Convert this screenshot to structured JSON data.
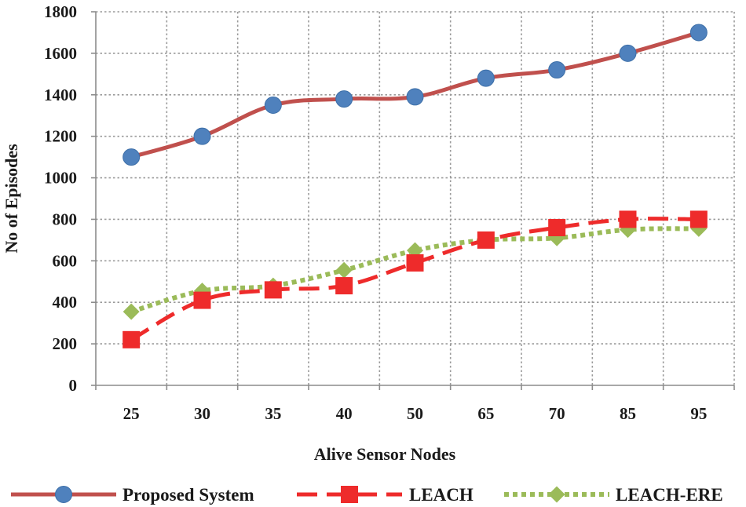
{
  "chart_data": {
    "type": "line",
    "title": "",
    "xlabel": "Alive Sensor Nodes",
    "ylabel": "No of Episodes",
    "categories": [
      "25",
      "30",
      "35",
      "40",
      "50",
      "65",
      "70",
      "85",
      "95"
    ],
    "ylim": [
      0,
      1800
    ],
    "yticks": [
      "0",
      "200",
      "400",
      "600",
      "800",
      "1000",
      "1200",
      "1400",
      "1600",
      "1800"
    ],
    "grid": true,
    "legend_position": "bottom",
    "series": [
      {
        "name": "Proposed System",
        "marker": "circle",
        "line_style": "solid",
        "color": "#c0504d",
        "marker_color": "#4f81bd",
        "values": [
          1100,
          1200,
          1350,
          1380,
          1390,
          1480,
          1520,
          1600,
          1700
        ]
      },
      {
        "name": "LEACH",
        "marker": "square",
        "line_style": "dashed",
        "color": "#ee2b2b",
        "marker_color": "#ee2b2b",
        "values": [
          220,
          410,
          460,
          480,
          590,
          700,
          760,
          800,
          800
        ]
      },
      {
        "name": "LEACH-ERE",
        "marker": "diamond",
        "line_style": "dotted",
        "color": "#9bbb59",
        "marker_color": "#9bbb59",
        "values": [
          355,
          455,
          480,
          555,
          650,
          700,
          710,
          750,
          755
        ]
      }
    ]
  }
}
